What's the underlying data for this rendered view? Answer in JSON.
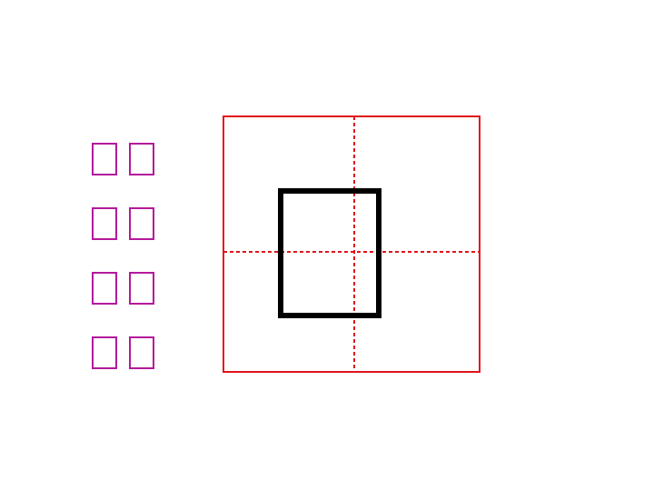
{
  "colors": {
    "grid_line": "#e0141c",
    "glyph_outline": "#000000",
    "word_box": "#b4199c",
    "background": "#ffffff"
  },
  "word_list": {
    "rows": [
      {
        "boxes": [
          "",
          ""
        ]
      },
      {
        "boxes": [
          "",
          ""
        ]
      },
      {
        "boxes": [
          "",
          ""
        ]
      },
      {
        "boxes": [
          "",
          ""
        ]
      }
    ]
  },
  "practice_grid": {
    "style": "tianzige",
    "guide_lines": "dashed-cross",
    "glyph": ""
  }
}
